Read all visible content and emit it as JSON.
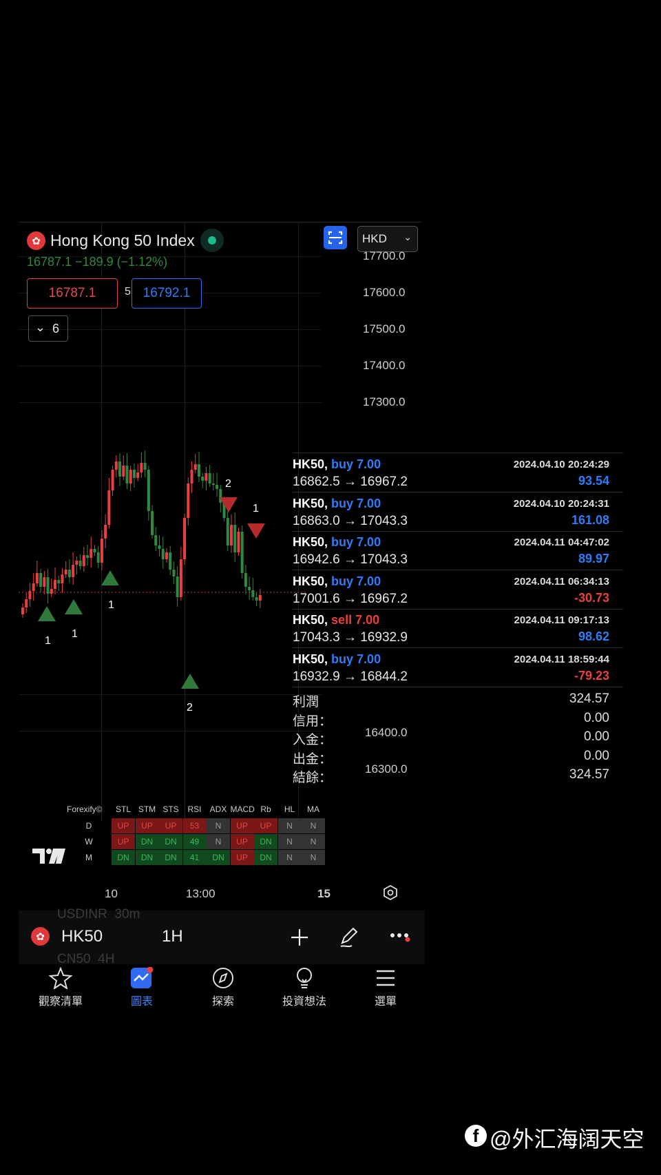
{
  "instrument": {
    "name": "Hong Kong 50 Index",
    "quote": "16787.1 −189.9 (−1.12%)"
  },
  "currency": "HKD",
  "bid": "16787.1",
  "spread": "5.0",
  "ask": "16792.1",
  "indicators_collapse": "6",
  "price_axis": {
    "upper": [
      "17700.0",
      "17600.0",
      "17500.0",
      "17400.0",
      "17300.0"
    ],
    "lower": [
      "16400.0",
      "16300.0"
    ]
  },
  "time_axis": [
    "10",
    "13:00",
    "15"
  ],
  "chart_markers": [
    "1",
    "1",
    "1",
    "2",
    "2",
    "1"
  ],
  "trades": [
    {
      "symbol": "HK50,",
      "side": "buy 7.00",
      "side_type": "buy",
      "time": "2024.04.10 20:24:29",
      "prices": "16862.5 → 16967.2",
      "profit": "93.54",
      "profit_sign": "pos"
    },
    {
      "symbol": "HK50,",
      "side": "buy 7.00",
      "side_type": "buy",
      "time": "2024.04.10 20:24:31",
      "prices": "16863.0 → 17043.3",
      "profit": "161.08",
      "profit_sign": "pos"
    },
    {
      "symbol": "HK50,",
      "side": "buy 7.00",
      "side_type": "buy",
      "time": "2024.04.11 04:47:02",
      "prices": "16942.6 → 17043.3",
      "profit": "89.97",
      "profit_sign": "pos"
    },
    {
      "symbol": "HK50,",
      "side": "buy 7.00",
      "side_type": "buy",
      "time": "2024.04.11 06:34:13",
      "prices": "17001.6 → 16967.2",
      "profit": "-30.73",
      "profit_sign": "neg"
    },
    {
      "symbol": "HK50,",
      "side": "sell 7.00",
      "side_type": "sell",
      "time": "2024.04.11 09:17:13",
      "prices": "17043.3 → 16932.9",
      "profit": "98.62",
      "profit_sign": "pos"
    },
    {
      "symbol": "HK50,",
      "side": "buy 7.00",
      "side_type": "buy",
      "time": "2024.04.11 18:59:44",
      "prices": "16932.9 → 16844.2",
      "profit": "-79.23",
      "profit_sign": "neg"
    }
  ],
  "summary": [
    {
      "label": "利潤",
      "value": "324.57"
    },
    {
      "label": "信用：",
      "value": "0.00"
    },
    {
      "label": "入金：",
      "value": "0.00"
    },
    {
      "label": "出金：",
      "value": "0.00"
    },
    {
      "label": "結餘：",
      "value": "324.57"
    }
  ],
  "indicator_table": {
    "brand": "Forexify©",
    "headers": [
      "STL",
      "STM",
      "STS",
      "RSI",
      "ADX",
      "MACD",
      "Rb",
      "HL",
      "MA"
    ],
    "rows": [
      {
        "tf": "D",
        "cells": [
          [
            "UP",
            "up"
          ],
          [
            "UP",
            "up"
          ],
          [
            "UP",
            "up"
          ],
          [
            "53",
            "up"
          ],
          [
            "N",
            "n"
          ],
          [
            "UP",
            "up"
          ],
          [
            "UP",
            "up"
          ],
          [
            "N",
            "n"
          ],
          [
            "N",
            "n"
          ]
        ]
      },
      {
        "tf": "W",
        "cells": [
          [
            "UP",
            "up"
          ],
          [
            "DN",
            "dn"
          ],
          [
            "DN",
            "dn"
          ],
          [
            "49",
            "dn"
          ],
          [
            "N",
            "n"
          ],
          [
            "UP",
            "up"
          ],
          [
            "DN",
            "dn"
          ],
          [
            "N",
            "n"
          ],
          [
            "N",
            "n"
          ]
        ]
      },
      {
        "tf": "M",
        "cells": [
          [
            "DN",
            "dn"
          ],
          [
            "DN",
            "dn"
          ],
          [
            "DN",
            "dn"
          ],
          [
            "41",
            "dn"
          ],
          [
            "DN",
            "dn"
          ],
          [
            "UP",
            "up"
          ],
          [
            "DN",
            "dn"
          ],
          [
            "N",
            "n"
          ],
          [
            "N",
            "n"
          ]
        ]
      }
    ]
  },
  "bottom_toolbar": {
    "symbol": "HK50",
    "timeframe": "1H",
    "ghost_top": "USDINR  30m",
    "ghost_bottom": "CN50  4H"
  },
  "nav": [
    "觀察清單",
    "圖表",
    "探索",
    "投資想法",
    "選單"
  ],
  "watermark": "@外汇海阔天空",
  "colors": {
    "up": "#e9403f",
    "down": "#2f7cf6",
    "buy": "#2f7cf6",
    "sell": "#e9403f",
    "accent": "#2563eb"
  }
}
